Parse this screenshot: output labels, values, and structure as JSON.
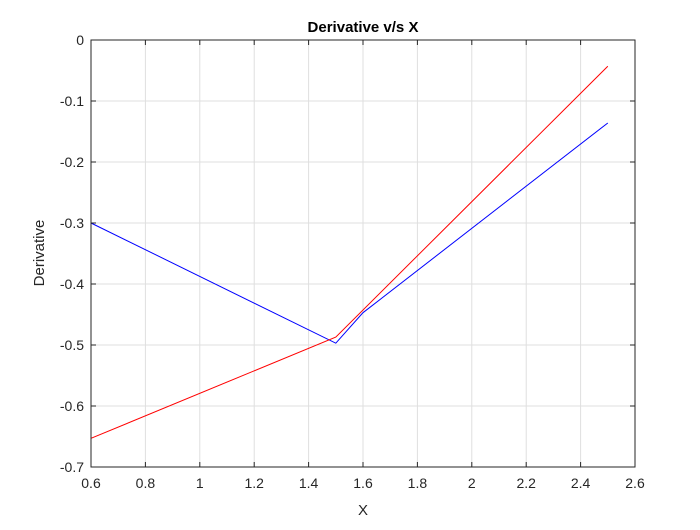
{
  "chart_data": {
    "type": "line",
    "title": "Derivative v/s X",
    "xlabel": "X",
    "ylabel": "Derivative",
    "xlim": [
      0.6,
      2.6
    ],
    "ylim": [
      -0.7,
      0
    ],
    "xticks": [
      0.6,
      0.8,
      1,
      1.2,
      1.4,
      1.6,
      1.8,
      2,
      2.2,
      2.4,
      2.6
    ],
    "yticks": [
      0,
      -0.1,
      -0.2,
      -0.3,
      -0.4,
      -0.5,
      -0.6,
      -0.7
    ],
    "xtick_labels": [
      "0.6",
      "0.8",
      "1",
      "1.2",
      "1.4",
      "1.6",
      "1.8",
      "2",
      "2.2",
      "2.4",
      "2.6"
    ],
    "ytick_labels": [
      "0",
      "-0.1",
      "-0.2",
      "-0.3",
      "-0.4",
      "-0.5",
      "-0.6",
      "-0.7"
    ],
    "grid": true,
    "legend": "none",
    "series": [
      {
        "color": "#0000ff",
        "x": [
          0.6,
          1.5,
          1.6,
          2.5
        ],
        "y": [
          -0.3,
          -0.497,
          -0.447,
          -0.136
        ]
      },
      {
        "color": "#ff0000",
        "x": [
          0.6,
          1.5,
          2.5
        ],
        "y": [
          -0.653,
          -0.487,
          -0.043
        ]
      }
    ]
  }
}
